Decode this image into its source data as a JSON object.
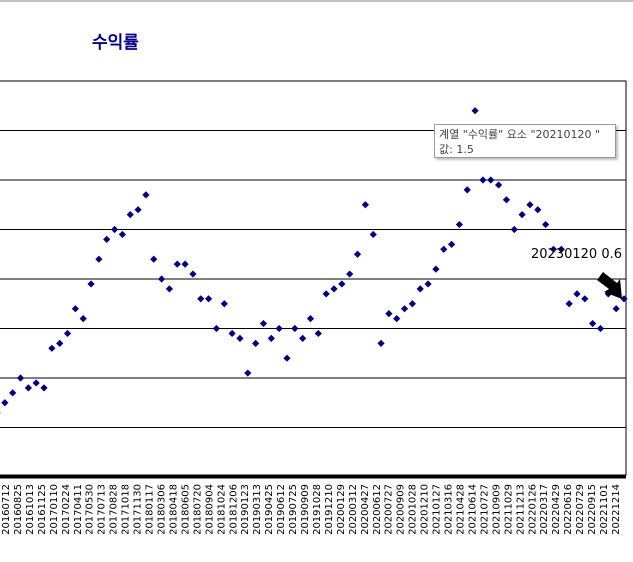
{
  "chart_data": {
    "type": "scatter",
    "title": "수익률",
    "marker_color": "#000080",
    "title_color": "#00008b",
    "x_tick_labels": [
      "20160712",
      "20160825",
      "20161013",
      "20161125",
      "20170110",
      "20170224",
      "20170411",
      "20170530",
      "20170713",
      "20170828",
      "20171018",
      "20171130",
      "20180117",
      "20180306",
      "20180418",
      "20180605",
      "20180720",
      "20180904",
      "20181024",
      "20181206",
      "20190123",
      "20190313",
      "20190425",
      "20190612",
      "20190725",
      "20190909",
      "20191028",
      "20191210",
      "20200129",
      "20200312",
      "20200427",
      "20200612",
      "20200727",
      "20200909",
      "20201028",
      "20201210",
      "20210127",
      "20210316",
      "20210428",
      "20210614",
      "20210727",
      "20210909",
      "20211029",
      "20211213",
      "20220126",
      "20220317",
      "20220429",
      "20220616",
      "20220729",
      "20220915",
      "20221101",
      "20221214"
    ],
    "ylim": [
      -3,
      5
    ],
    "y_gridlines": [
      -3,
      -2,
      -1,
      0,
      1,
      2,
      3,
      4,
      5
    ],
    "series": [
      {
        "values": [
          -1.7,
          -1.5,
          -1.3,
          -1.0,
          -1.2,
          -1.1,
          -1.2,
          -0.4,
          -0.3,
          -0.1,
          0.4,
          0.2,
          0.9,
          1.4,
          1.8,
          2.0,
          1.9,
          2.3,
          2.4,
          2.7,
          1.4,
          1.0,
          0.8,
          1.3,
          1.3,
          1.1,
          0.6,
          0.6,
          0.0,
          0.5,
          -0.1,
          -0.2,
          -0.9,
          -0.3,
          0.1,
          -0.2,
          0.0,
          -0.6,
          0.0,
          -0.2,
          0.2,
          -0.1,
          0.7,
          0.8,
          0.9,
          1.1,
          1.5,
          2.5,
          1.9,
          -0.3,
          0.3,
          0.2,
          0.4,
          0.5,
          0.8,
          0.9,
          1.2,
          1.6,
          1.7,
          2.1,
          2.8,
          4.4,
          3.0,
          3.0,
          2.9,
          2.6,
          2.0,
          2.3,
          2.5,
          2.4,
          2.1,
          1.6,
          1.6,
          0.5,
          0.7,
          0.6,
          0.1,
          0.0,
          0.7,
          0.4,
          0.6
        ],
        "labels": [
          {
            "index": 35,
            "text": "20230120 0.6"
          }
        ]
      }
    ],
    "tooltip": {
      "line1": "계열 \"수익률\" 요소 \"20210120 \"",
      "line2": "값: 1.5"
    }
  }
}
